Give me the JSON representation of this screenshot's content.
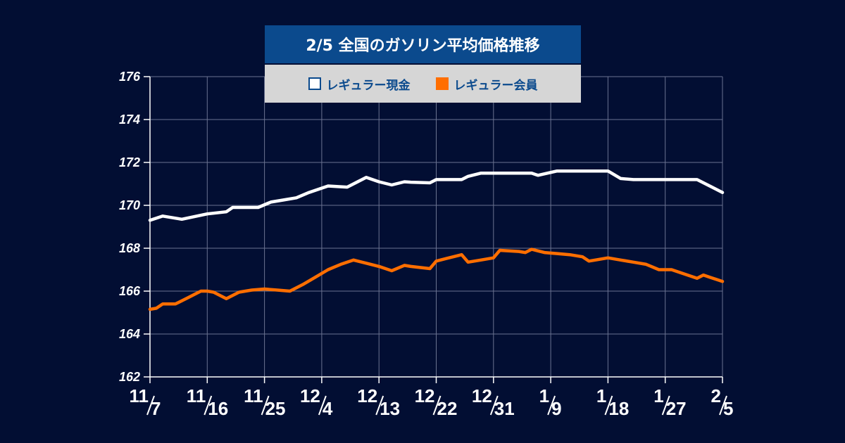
{
  "chart_data": {
    "type": "line",
    "title": "2/5 全国のガソリン平均価格推移",
    "xlabel": "",
    "ylabel": "",
    "ylim": [
      162,
      176
    ],
    "y_ticks": [
      162,
      164,
      166,
      168,
      170,
      172,
      174,
      176
    ],
    "x_range": [
      0,
      90
    ],
    "x_ticks": [
      {
        "x": 0,
        "month": "11",
        "day": "7"
      },
      {
        "x": 9,
        "month": "11",
        "day": "16"
      },
      {
        "x": 18,
        "month": "11",
        "day": "25"
      },
      {
        "x": 27,
        "month": "12",
        "day": "4"
      },
      {
        "x": 36,
        "month": "12",
        "day": "13"
      },
      {
        "x": 45,
        "month": "12",
        "day": "22"
      },
      {
        "x": 54,
        "month": "12",
        "day": "31"
      },
      {
        "x": 63,
        "month": "1",
        "day": "9"
      },
      {
        "x": 72,
        "month": "1",
        "day": "18"
      },
      {
        "x": 81,
        "month": "1",
        "day": "27"
      },
      {
        "x": 90,
        "month": "2",
        "day": "5"
      }
    ],
    "grid": true,
    "legend_position": "top-center",
    "series": [
      {
        "name": "レギュラー現金",
        "color": "#ffffff",
        "x": [
          0,
          2,
          5,
          9,
          12,
          13,
          15,
          17,
          19,
          21,
          23,
          25,
          28,
          31,
          34,
          36,
          38,
          40,
          41,
          44,
          45,
          47,
          49,
          50,
          52,
          54,
          56,
          58,
          60,
          61,
          64,
          66,
          68,
          69,
          70,
          72,
          74,
          76,
          78,
          80,
          82,
          84,
          86,
          88,
          90
        ],
        "values": [
          169.3,
          169.5,
          169.35,
          169.6,
          169.7,
          169.9,
          169.9,
          169.9,
          170.15,
          170.25,
          170.35,
          170.6,
          170.9,
          170.85,
          171.3,
          171.1,
          170.95,
          171.1,
          171.08,
          171.05,
          171.2,
          171.2,
          171.2,
          171.35,
          171.5,
          171.5,
          171.5,
          171.5,
          171.5,
          171.4,
          171.6,
          171.6,
          171.6,
          171.6,
          171.6,
          171.6,
          171.25,
          171.2,
          171.2,
          171.2,
          171.2,
          171.2,
          171.2,
          170.9,
          170.6
        ]
      },
      {
        "name": "レギュラー会員",
        "color": "#ff6e00",
        "x": [
          0,
          1,
          2,
          4,
          6,
          7,
          8,
          9,
          10,
          12,
          14,
          16,
          18,
          20,
          22,
          24,
          26,
          28,
          30,
          32,
          34,
          36,
          38,
          40,
          41,
          44,
          45,
          47,
          49,
          50,
          52,
          54,
          55,
          58,
          59,
          60,
          62,
          64,
          66,
          68,
          69,
          70,
          72,
          74,
          76,
          78,
          80,
          82,
          84,
          86,
          87,
          88,
          90
        ],
        "values": [
          165.15,
          165.2,
          165.4,
          165.4,
          165.7,
          165.85,
          166.0,
          166.0,
          165.95,
          165.65,
          165.95,
          166.05,
          166.1,
          166.05,
          166.0,
          166.3,
          166.65,
          167.0,
          167.25,
          167.45,
          167.3,
          167.15,
          166.95,
          167.2,
          167.15,
          167.05,
          167.4,
          167.55,
          167.7,
          167.35,
          167.45,
          167.55,
          167.9,
          167.85,
          167.8,
          167.95,
          167.8,
          167.75,
          167.7,
          167.6,
          167.4,
          167.45,
          167.55,
          167.45,
          167.35,
          167.25,
          167.0,
          167.0,
          166.8,
          166.6,
          166.75,
          166.65,
          166.45
        ]
      }
    ]
  }
}
